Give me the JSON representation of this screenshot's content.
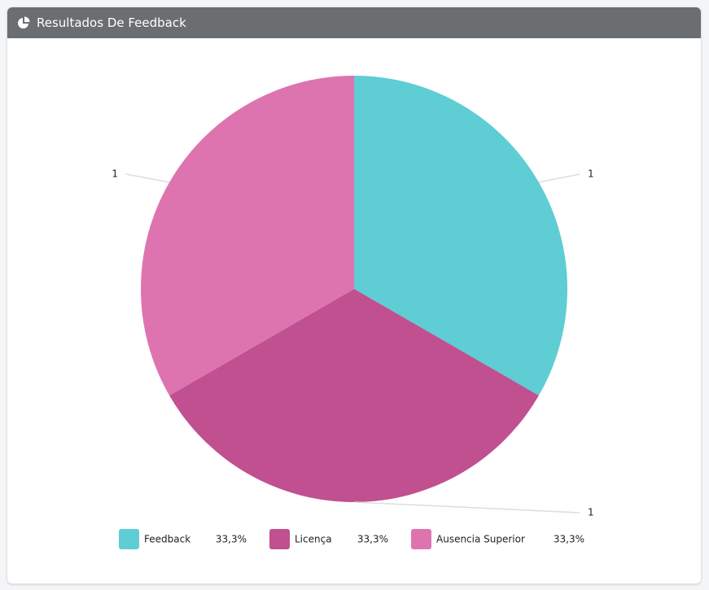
{
  "chart_data": {
    "type": "pie",
    "title": "Resultados De Feedback",
    "categories": [
      "Feedback",
      "Licença",
      "Ausencia Superior"
    ],
    "values": [
      1,
      1,
      1
    ],
    "colors": [
      "#5ecdd4",
      "#c0508f",
      "#dd74b0"
    ],
    "percents": [
      33.3,
      33.3,
      33.3
    ],
    "percent_labels": [
      "33,3%",
      "33,3%",
      "33,3%"
    ]
  }
}
